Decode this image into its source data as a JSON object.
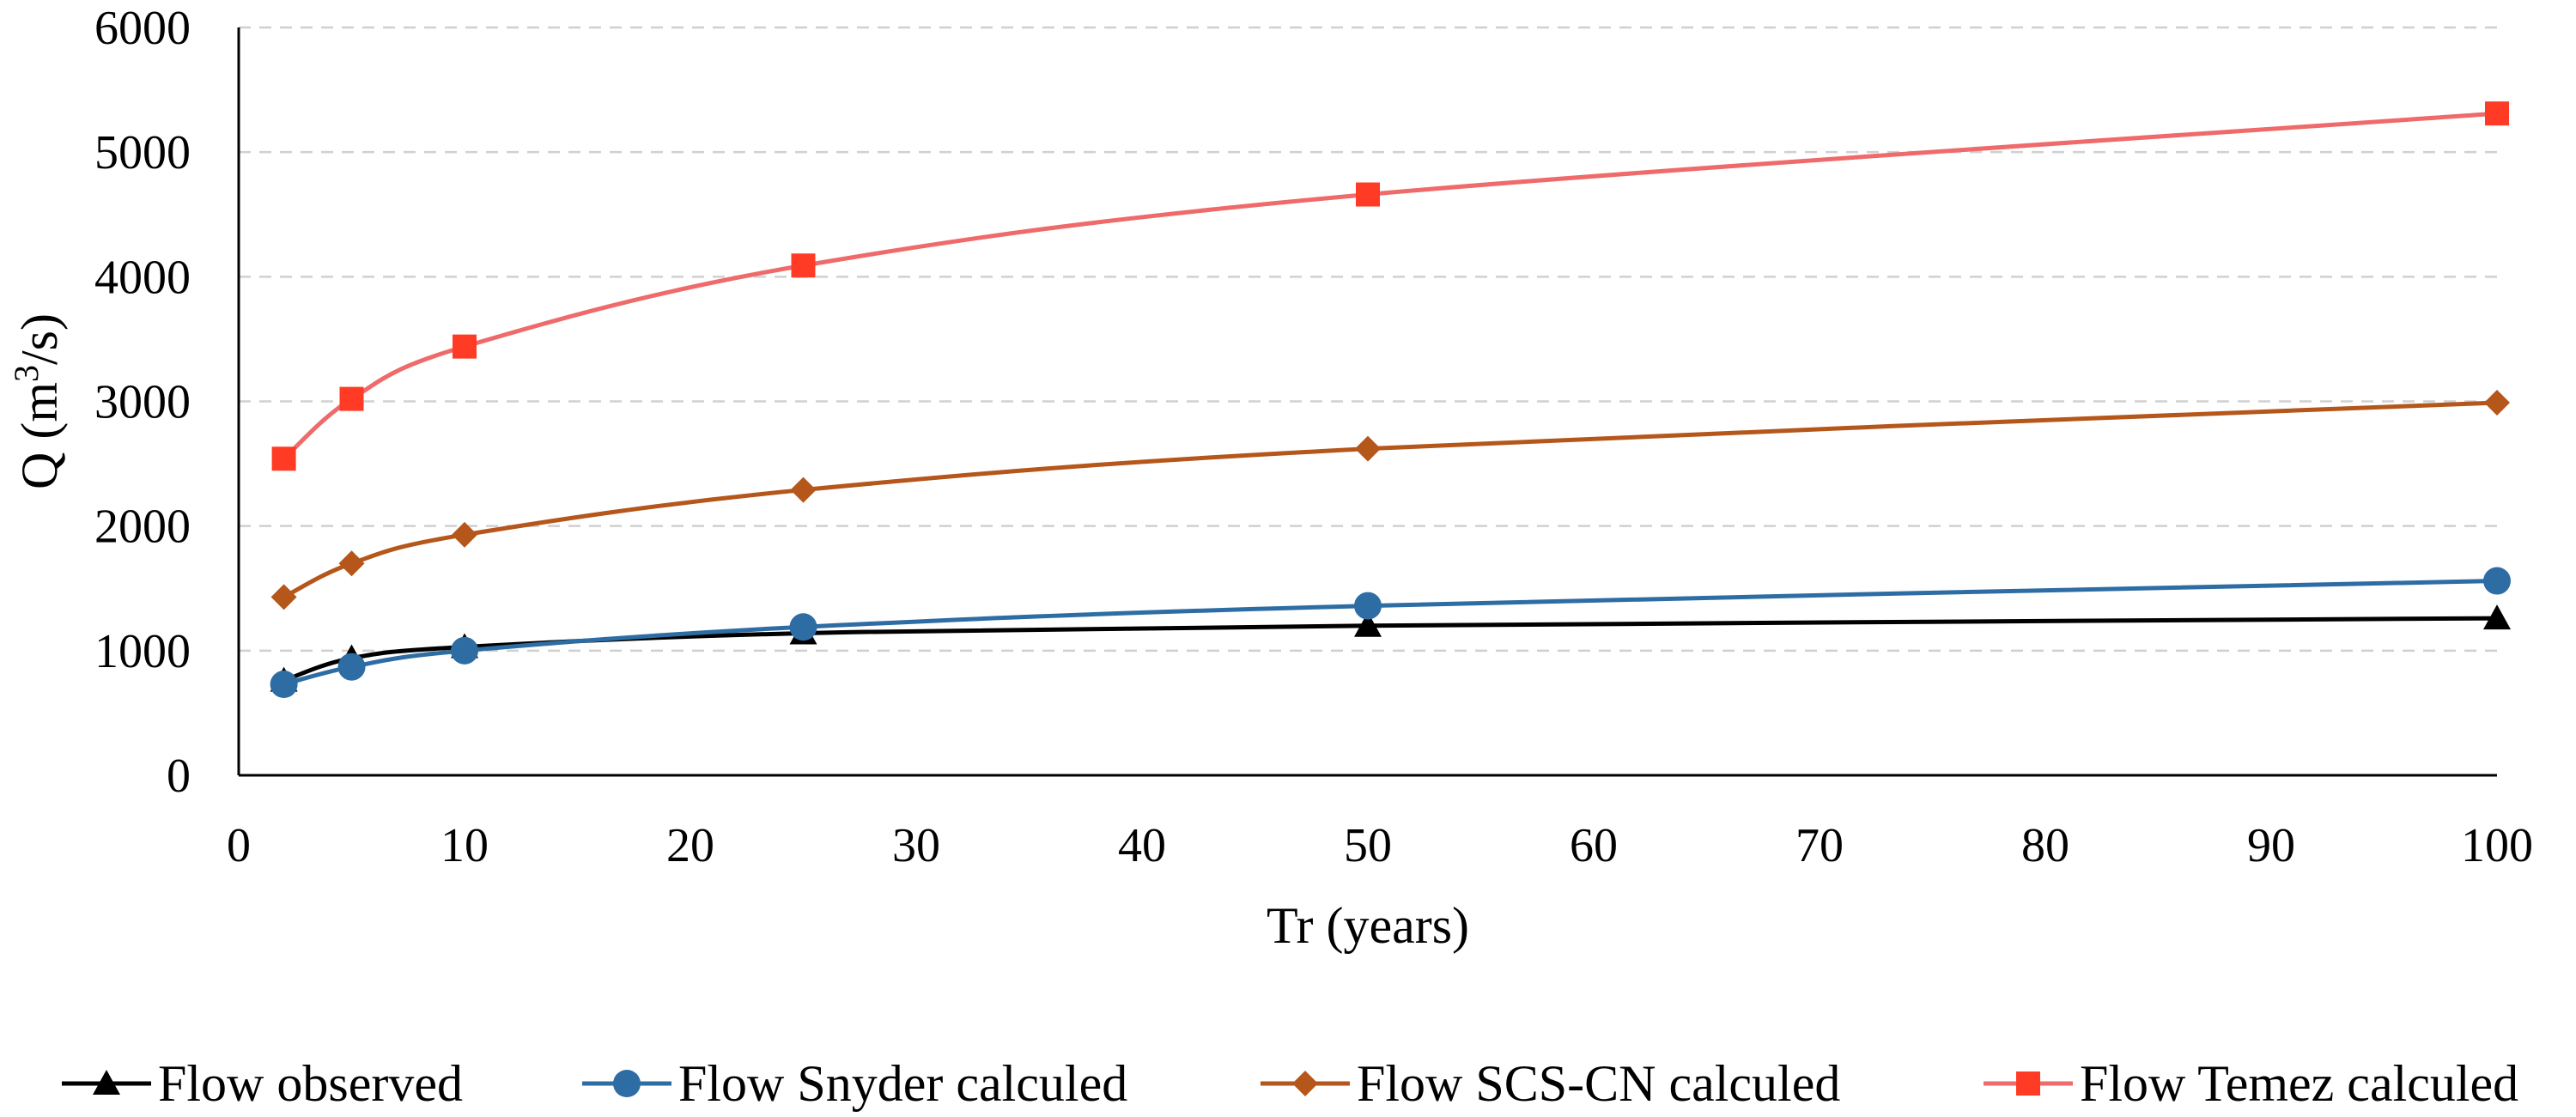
{
  "chart_data": {
    "type": "line",
    "title": "",
    "xlabel": "Tr (years)",
    "ylabel_prefix": "Q (m",
    "ylabel_superscript": "3",
    "ylabel_suffix": "/s)",
    "xlim": [
      0,
      100
    ],
    "ylim": [
      0,
      6000
    ],
    "xticks": [
      0,
      10,
      20,
      30,
      40,
      50,
      60,
      70,
      80,
      90,
      100
    ],
    "yticks": [
      0,
      1000,
      2000,
      3000,
      4000,
      5000,
      6000
    ],
    "grid": "horizontal dashed",
    "legend_position": "bottom",
    "x": [
      2,
      5,
      10,
      25,
      50,
      100
    ],
    "series": [
      {
        "name": "Flow observed",
        "marker": "triangle",
        "color": "#000000",
        "values": [
          760,
          940,
          1030,
          1140,
          1200,
          1260
        ]
      },
      {
        "name": "Flow Snyder calculed",
        "marker": "circle",
        "color": "#2E6DA4",
        "values": [
          730,
          870,
          1000,
          1190,
          1360,
          1560
        ]
      },
      {
        "name": "Flow SCS-CN calculed",
        "marker": "diamond",
        "color": "#B5561A",
        "values": [
          1430,
          1700,
          1930,
          2290,
          2620,
          2990
        ]
      },
      {
        "name": "Flow Temez calculed",
        "marker": "square",
        "color": "#EF6A6A",
        "marker_color": "#FF3B26",
        "values": [
          2540,
          3020,
          3440,
          4090,
          4660,
          5310
        ]
      }
    ]
  }
}
